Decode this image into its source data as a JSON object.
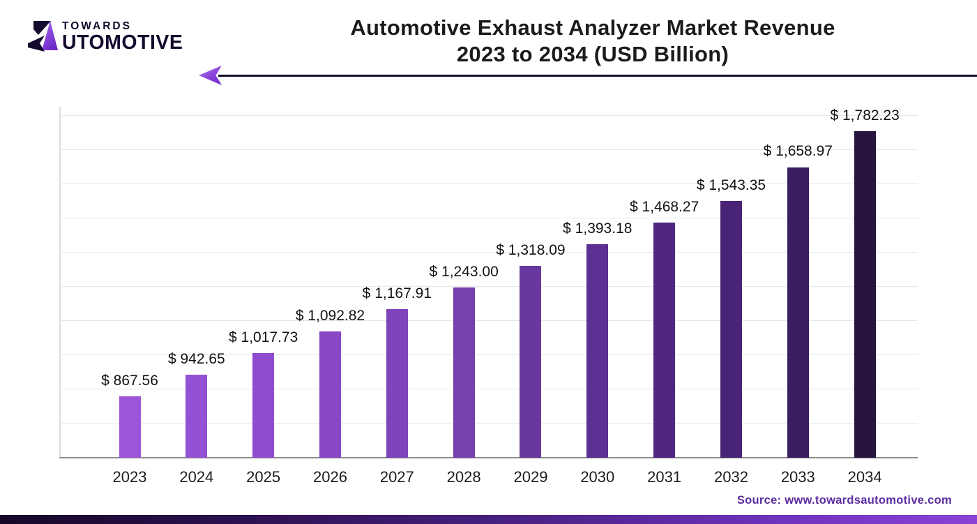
{
  "header": {
    "logo": {
      "top_text": "TOWARDS",
      "bottom_text": "UTOMOTIVE",
      "mark": "stylized-A-arrow",
      "mark_dark_color": "#150a2d",
      "mark_purple_color": "#8a43d9"
    },
    "title_line1": "Automotive Exhaust Analyzer Market Revenue",
    "title_line2": "2023 to 2034 (USD Billion)",
    "arrow_direction": "left"
  },
  "footer": {
    "source_text": "Source: www.towardsautomotive.com",
    "source_color": "#5b2da1"
  },
  "chart_data": {
    "type": "bar",
    "title": "Automotive Exhaust Analyzer Market Revenue 2023 to 2034 (USD Billion)",
    "unit": "USD Billion",
    "xlabel": "",
    "ylabel": "",
    "categories": [
      "2023",
      "2024",
      "2025",
      "2026",
      "2027",
      "2028",
      "2029",
      "2030",
      "2031",
      "2032",
      "2033",
      "2034"
    ],
    "values": [
      867.56,
      942.65,
      1017.73,
      1092.82,
      1167.91,
      1243.0,
      1318.09,
      1393.18,
      1468.27,
      1543.35,
      1658.97,
      1782.23
    ],
    "value_labels": [
      "$ 867.56",
      "$ 942.65",
      "$ 1,017.73",
      "$ 1,092.82",
      "$ 1,167.91",
      "$ 1,243.00",
      "$ 1,318.09",
      "$ 1,393.18",
      "$ 1,468.27",
      "$ 1,543.35",
      "$ 1,658.97",
      "$ 1,782.23"
    ],
    "bar_colors": [
      "#9C54D8",
      "#9551D4",
      "#8F4CCF",
      "#8848C6",
      "#7F43BA",
      "#7640AE",
      "#68389F",
      "#5C3093",
      "#4F2681",
      "#482376",
      "#3A1D63",
      "#27153F"
    ],
    "ylim": [
      656,
      1860
    ],
    "grid": true,
    "gridline_count": 10,
    "legend": false,
    "axis_labels_hidden": true
  }
}
